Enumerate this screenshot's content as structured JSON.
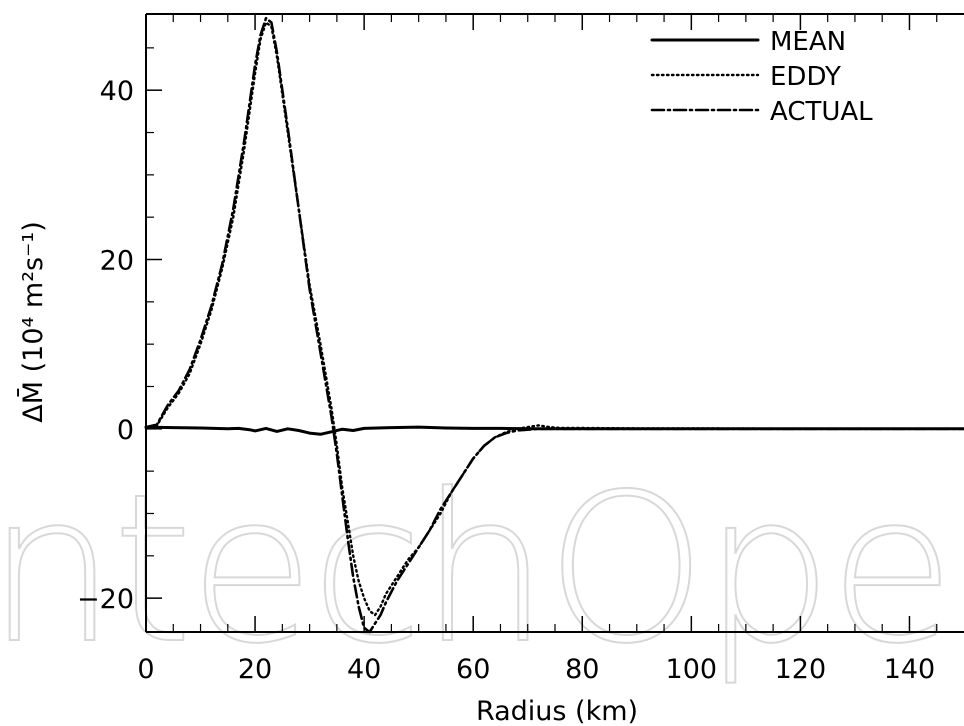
{
  "chart_data": {
    "type": "line",
    "title": "",
    "xlabel": "Radius (km)",
    "ylabel": "ΔM̄ (10⁴ m²s⁻¹)",
    "xlim": [
      0,
      150
    ],
    "ylim": [
      -24,
      49
    ],
    "x_ticks": [
      0,
      20,
      40,
      60,
      80,
      100,
      120,
      140
    ],
    "y_ticks": [
      -20,
      0,
      20,
      40
    ],
    "x_tick_labels": [
      "0",
      "20",
      "40",
      "60",
      "80",
      "100",
      "120",
      "140"
    ],
    "y_tick_labels": [
      "−20",
      "0",
      "20",
      "40"
    ],
    "grid": false,
    "legend_position": "top-right",
    "series": [
      {
        "name": "MEAN",
        "style": "solid",
        "x": [
          0,
          5,
          10,
          15,
          17,
          19,
          20,
          22,
          24,
          26,
          28,
          30,
          32,
          34,
          36,
          38,
          40,
          45,
          50,
          55,
          60,
          65,
          70,
          80,
          100,
          120,
          150
        ],
        "y": [
          0.2,
          0.15,
          0.1,
          0,
          0.05,
          -0.1,
          -0.25,
          0.05,
          -0.3,
          0,
          -0.2,
          -0.5,
          -0.65,
          -0.35,
          -0.05,
          -0.2,
          0.05,
          0.15,
          0.2,
          0.1,
          0.05,
          0.05,
          0,
          0,
          0,
          0,
          0
        ]
      },
      {
        "name": "EDDY",
        "style": "dotted",
        "x": [
          0,
          2,
          4,
          6,
          8,
          10,
          12,
          14,
          16,
          18,
          20,
          21,
          22,
          23,
          24,
          26,
          28,
          30,
          32,
          34,
          35,
          36,
          37,
          38,
          39,
          40,
          41,
          42,
          43,
          44,
          46,
          48,
          50,
          52,
          54,
          56,
          58,
          60,
          62,
          64,
          66,
          68,
          70,
          72,
          74,
          76,
          80,
          90,
          100,
          120,
          150
        ],
        "y": [
          0,
          0.4,
          2.5,
          4.2,
          6.5,
          10,
          14,
          19,
          25,
          33,
          42,
          46,
          48,
          47.5,
          44,
          35,
          26,
          17,
          10,
          2.5,
          -2,
          -7,
          -11,
          -15,
          -18,
          -20,
          -21.5,
          -22,
          -21,
          -19.5,
          -17.5,
          -15.5,
          -14,
          -12,
          -10,
          -7.5,
          -5.5,
          -3.5,
          -2,
          -1,
          -0.4,
          0,
          0.2,
          0.4,
          0.2,
          0.1,
          0.1,
          0.05,
          0.05,
          0,
          0
        ]
      },
      {
        "name": "ACTUAL",
        "style": "dashdot",
        "x": [
          0,
          2,
          4,
          6,
          8,
          10,
          12,
          14,
          16,
          18,
          20,
          21,
          22,
          23,
          24,
          26,
          28,
          30,
          32,
          34,
          35,
          36,
          37,
          38,
          39,
          40,
          41,
          42,
          43,
          44,
          46,
          48,
          50,
          52,
          54,
          56,
          58,
          60,
          62,
          64,
          66,
          68,
          70,
          72,
          74,
          76,
          80,
          90,
          100,
          120,
          150
        ],
        "y": [
          0.2,
          0.5,
          2.8,
          4.5,
          7,
          10.5,
          14.5,
          19.5,
          26,
          34,
          43,
          46.5,
          48.5,
          48,
          44.5,
          35.5,
          26,
          16.5,
          9,
          1.5,
          -3,
          -8,
          -13,
          -17.5,
          -21,
          -23.5,
          -24,
          -23,
          -22,
          -20.5,
          -18,
          -16,
          -14,
          -12,
          -9.5,
          -7.5,
          -5.5,
          -3.5,
          -2,
          -1,
          -0.5,
          -0.2,
          -0.1,
          0,
          0,
          0,
          0,
          0,
          0,
          0,
          0
        ]
      }
    ]
  },
  "watermark": {
    "text": "IntechOpen"
  }
}
